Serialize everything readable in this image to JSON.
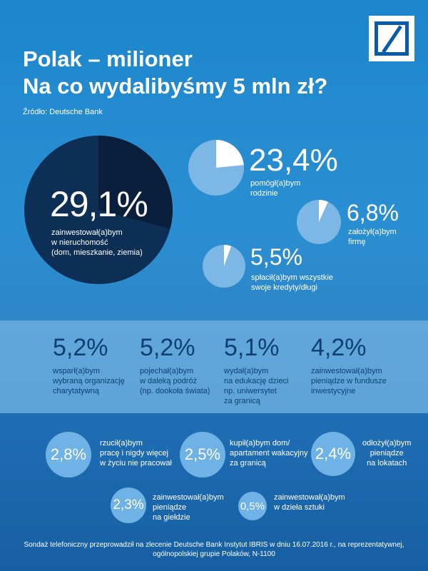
{
  "header": {
    "title_line1": "Polak – milioner",
    "title_line2": "Na co wydalibyśmy 5 mln zł?",
    "source": "Źródło: Deutsche Bank"
  },
  "top": {
    "main": {
      "pct": "29,1%",
      "line1": "zainwestował(a)bym",
      "line2": "w nieruchomość",
      "line3": "(dom, mieszkanie, ziemia)",
      "fraction": 0.291
    },
    "items": [
      {
        "pct": "23,4%",
        "line1": "pomógł(a)bym",
        "line2": "rodzinie",
        "fraction": 0.234
      },
      {
        "pct": "6,8%",
        "line1": "założył(a)bym",
        "line2": "firmę",
        "fraction": 0.068
      },
      {
        "pct": "5,5%",
        "line1": "spłacił(a)bym wszystkie",
        "line2": "swoje kredyty/długi",
        "fraction": 0.055
      }
    ]
  },
  "band": [
    {
      "pct": "5,2%",
      "line1": "wsparł(a)bym",
      "line2": "wybraną organizację",
      "line3": "charytatywną"
    },
    {
      "pct": "5,2%",
      "line1": "pojechał(a)bym",
      "line2": "w daleką podróż",
      "line3": "(np. dookoła świata)"
    },
    {
      "pct": "5,1%",
      "line1": "wydał(a)bym",
      "line2": "na edukację dzieci",
      "line3": "np. uniwersytet",
      "line4": "za granicą"
    },
    {
      "pct": "4,2%",
      "line1": "zainwestował(a)bym",
      "line2": "pieniądze w fundusze",
      "line3": "inwestycyjne"
    }
  ],
  "bottom": [
    {
      "pct": "2,8%",
      "line1": "rzucił(a)bym",
      "line2": "pracę i nigdy więcej",
      "line3": "w życiu nie pracował"
    },
    {
      "pct": "2,5%",
      "line1": "kupił(a)bym dom/",
      "line2": "apartament wakacyjny",
      "line3": "za granicą"
    },
    {
      "pct": "2,4%",
      "line1": "odłożył(a)bym",
      "line2": "pieniądze",
      "line3": "na lokatach"
    },
    {
      "pct": "2,3%",
      "line1": "zainwestował(a)bym",
      "line2": "pieniądze",
      "line3": "na giełdzie"
    },
    {
      "pct": "0,5%",
      "line1": "zainwestował(a)bym",
      "line2": "w dzieła sztuki"
    }
  ],
  "footnote": {
    "line1": "Sondaż telefoniczny przeprowadził na zlecenie Deutsche Bank Instytut IBRIS w dniu 16.07.2016 r., na reprezentatywnej,",
    "line2": "ogólnopolskiej grupie Polaków, N-1100"
  },
  "colors": {
    "pie_main_fill": "#0d2f55",
    "pie_main_slice": "#0a1f3c",
    "pie_small_fill": "#7db7e6",
    "pie_small_slice": "#ffffff",
    "band_text": "#0e3f73",
    "circle_fill": "#6fb2e6"
  }
}
